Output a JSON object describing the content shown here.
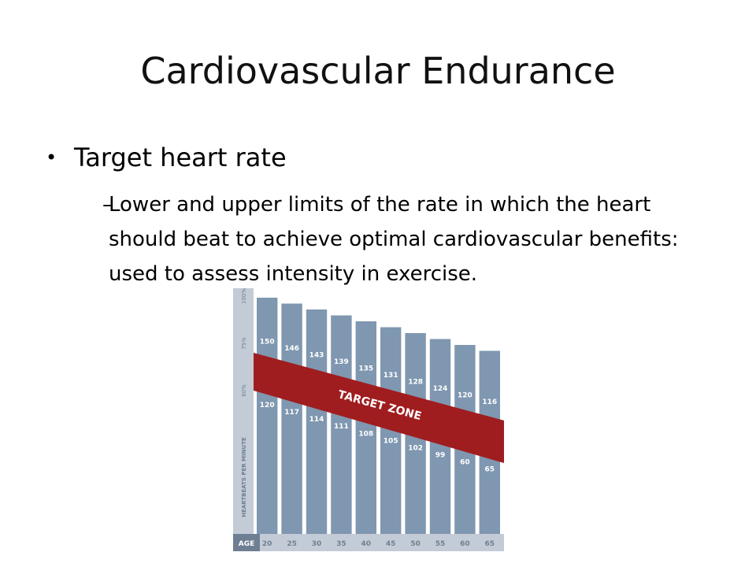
{
  "slide": {
    "title": "Cardiovascular Endurance",
    "bullet": "Target heart rate",
    "bullet_marker": "•",
    "sub_marker": "–",
    "sub_bullet": "Lower and upper limits of the rate in which the heart should beat to achieve optimal cardiovascular benefits: used to assess intensity in exercise."
  },
  "chart_data": {
    "type": "bar",
    "x_label": "AGE",
    "ylabel": "HEARTBEATS PER MINUTE",
    "y_ticks": [
      "100%",
      "75%",
      "60%"
    ],
    "categories": [
      "20",
      "25",
      "30",
      "35",
      "40",
      "45",
      "50",
      "55",
      "60",
      "65"
    ],
    "series": [
      {
        "values": [
          200,
          195,
          190,
          185,
          180,
          175,
          170,
          165,
          160,
          155
        ]
      }
    ],
    "upper_limit": [
      150,
      146,
      143,
      139,
      135,
      131,
      128,
      124,
      120,
      116
    ],
    "lower_limit": [
      120,
      117,
      114,
      111,
      108,
      105,
      102,
      99,
      60,
      65
    ],
    "zone_label": "TARGET ZONE",
    "colors": {
      "bar": "#7f97b0",
      "zone": "#a01d1f",
      "axis_band": "#c3ccd6",
      "text": "#ffffff",
      "axis_text": "#6f7f92"
    }
  }
}
